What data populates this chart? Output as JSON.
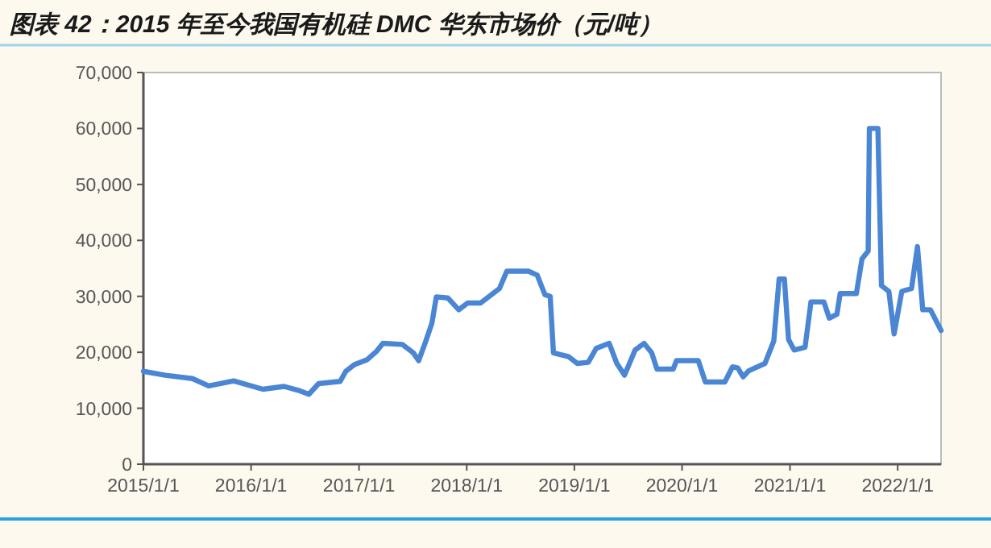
{
  "chart_data": {
    "type": "line",
    "title": "图表 42：2015 年至今我国有机硅 DMC 华东市场价（元/吨）",
    "x": [
      "2015-01-01",
      "2015-03-16",
      "2015-06-16",
      "2015-08-10",
      "2015-11-03",
      "2016-02-10",
      "2016-04-22",
      "2016-06-09",
      "2016-07-15",
      "2016-08-17",
      "2016-10-29",
      "2016-11-17",
      "2016-12-16",
      "2017-01-29",
      "2017-02-28",
      "2017-03-23",
      "2017-05-28",
      "2017-07-04",
      "2017-07-22",
      "2017-08-14",
      "2017-09-05",
      "2017-09-20",
      "2017-10-29",
      "2017-12-05",
      "2018-01-04",
      "2018-02-17",
      "2018-04-22",
      "2018-05-17",
      "2018-07-29",
      "2018-08-28",
      "2018-09-23",
      "2018-10-11",
      "2018-10-22",
      "2018-12-13",
      "2019-01-11",
      "2019-02-17",
      "2019-03-16",
      "2019-04-29",
      "2019-05-25",
      "2019-06-20",
      "2019-07-26",
      "2019-08-25",
      "2019-09-20",
      "2019-10-08",
      "2019-12-02",
      "2019-12-13",
      "2020-02-25",
      "2020-03-20",
      "2020-05-25",
      "2020-06-20",
      "2020-07-08",
      "2020-07-26",
      "2020-08-14",
      "2020-10-08",
      "2020-11-07",
      "2020-11-25",
      "2020-12-13",
      "2020-12-27",
      "2021-01-15",
      "2021-02-21",
      "2021-03-13",
      "2021-04-26",
      "2021-05-14",
      "2021-06-09",
      "2021-06-20",
      "2021-08-14",
      "2021-09-02",
      "2021-09-23",
      "2021-09-27",
      "2021-10-26",
      "2021-11-07",
      "2021-12-02",
      "2021-12-20",
      "2022-01-15",
      "2022-02-17",
      "2022-03-09",
      "2022-03-27",
      "2022-04-22",
      "2022-05-28"
    ],
    "series": [
      {
        "color": "#4a86d4",
        "values": [
          16600,
          15900,
          15300,
          14000,
          14900,
          13400,
          13900,
          13200,
          12500,
          14400,
          14800,
          16600,
          17800,
          18700,
          20100,
          21600,
          21400,
          19900,
          18500,
          21800,
          25200,
          29900,
          29700,
          27600,
          28800,
          28800,
          31400,
          34500,
          34500,
          33800,
          30300,
          30000,
          19900,
          19200,
          18000,
          18200,
          20700,
          21600,
          18000,
          15900,
          20400,
          21600,
          19900,
          17000,
          17000,
          18500,
          18500,
          14700,
          14700,
          17400,
          17200,
          15600,
          16700,
          18000,
          22000,
          33100,
          33100,
          22300,
          20400,
          20900,
          29000,
          29000,
          26100,
          26800,
          30500,
          30500,
          36700,
          38100,
          60000,
          60000,
          31900,
          30900,
          23300,
          30900,
          31400,
          38900,
          27600,
          27600,
          23900
        ]
      }
    ],
    "xlim": [
      "2015-01-01",
      "2022-05-28"
    ],
    "xticks": [
      {
        "value": "2015-01-01",
        "label": "2015/1/1"
      },
      {
        "value": "2016-01-01",
        "label": "2016/1/1"
      },
      {
        "value": "2017-01-01",
        "label": "2017/1/1"
      },
      {
        "value": "2018-01-01",
        "label": "2018/1/1"
      },
      {
        "value": "2019-01-01",
        "label": "2019/1/1"
      },
      {
        "value": "2020-01-01",
        "label": "2020/1/1"
      },
      {
        "value": "2021-01-01",
        "label": "2021/1/1"
      },
      {
        "value": "2022-01-01",
        "label": "2022/1/1"
      }
    ],
    "ylim": [
      0,
      70000
    ],
    "yticks": [
      0,
      {
        "value": 10000,
        "label": "10,000"
      },
      {
        "value": 20000,
        "label": "20,000"
      },
      {
        "value": 30000,
        "label": "30,000"
      },
      {
        "value": 40000,
        "label": "40,000"
      },
      {
        "value": 50000,
        "label": "50,000"
      },
      {
        "value": 60000,
        "label": "60,000"
      },
      {
        "value": 70000,
        "label": "70,000"
      }
    ],
    "line_style": "solid"
  }
}
